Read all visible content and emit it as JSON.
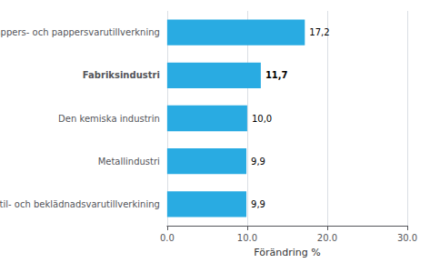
{
  "chart_data": {
    "type": "bar",
    "orientation": "horizontal",
    "categories": [
      "Textil- och beklädnadsvarutillverkining",
      "Metallindustri",
      "Den kemiska industrin",
      "Fabriksindustri",
      "Pappers- och pappersvarutillverkning"
    ],
    "values": [
      9.9,
      9.9,
      10.0,
      11.7,
      17.2
    ],
    "value_labels": [
      "9,9",
      "9,9",
      "10,0",
      "11,7",
      "17,2"
    ],
    "data_labels": true,
    "color": "#29abe2",
    "xlabel": "Förändring %",
    "xlim": [
      0,
      30
    ],
    "xticks": [
      {
        "value": 0.0,
        "label": "0.0"
      },
      {
        "value": 10.0,
        "label": "10.0"
      },
      {
        "value": 20.0,
        "label": "20.0"
      },
      {
        "value": 30.0,
        "label": "30.0"
      }
    ],
    "grid": true
  }
}
